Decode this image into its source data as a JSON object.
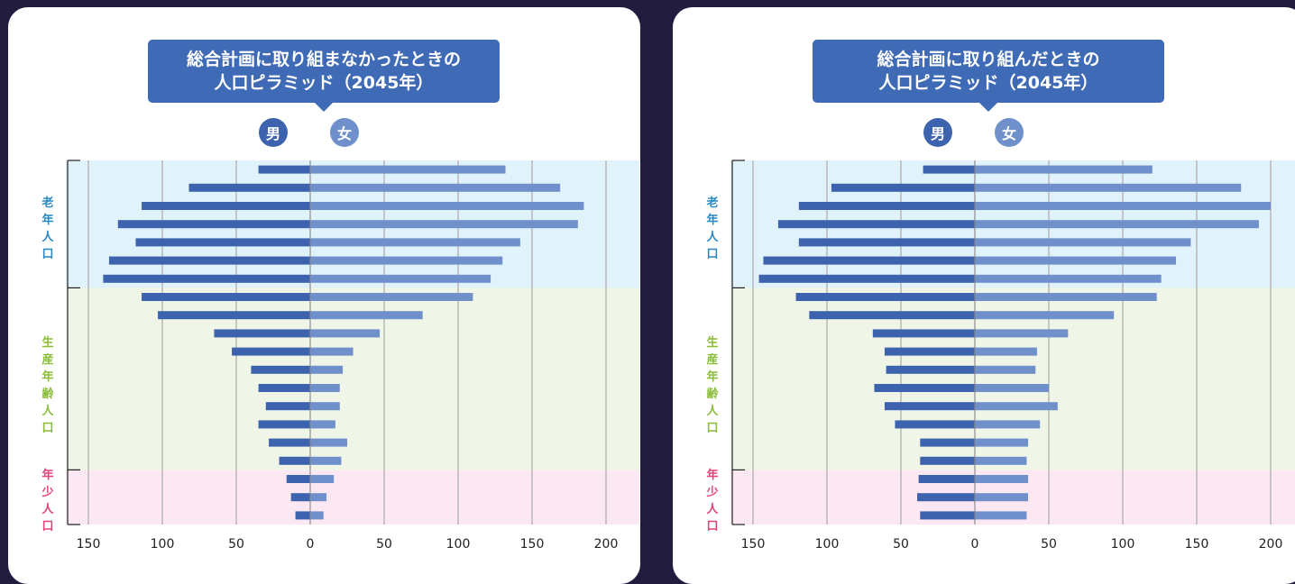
{
  "colors": {
    "page_bg": "#221d3f",
    "title_bg": "#3f6ab6",
    "male_bar": "#3e63ae",
    "female_bar": "#6f90cb",
    "band_old": "#e0f2fa",
    "band_working": "#eff5e7",
    "band_young": "#fbe8f2",
    "grid": "#aaaaaa"
  },
  "labels": {
    "male": "男",
    "female": "女",
    "old": "老年人口",
    "working": "生産年齢人口",
    "young": "年少人口"
  },
  "chart_data": [
    {
      "type": "bar",
      "orientation": "horizontal-pyramid",
      "title": "総合計画に取り組まなかったときの",
      "title_line2": "人口ピラミッド（2045年）",
      "xlim_male": [
        0,
        150
      ],
      "xlim_female": [
        0,
        200
      ],
      "tick_labels": [
        "150",
        "100",
        "50",
        "0",
        "50",
        "100",
        "150",
        "200"
      ],
      "grid": true,
      "series": [
        {
          "name": "男",
          "values": [
            35,
            82,
            114,
            130,
            118,
            136,
            140,
            114,
            103,
            65,
            53,
            40,
            35,
            30,
            35,
            28,
            21,
            16,
            13,
            10
          ]
        },
        {
          "name": "女",
          "values": [
            132,
            169,
            185,
            181,
            142,
            130,
            122,
            110,
            76,
            47,
            29,
            22,
            20,
            20,
            17,
            25,
            21,
            16,
            11,
            9
          ]
        }
      ]
    },
    {
      "type": "bar",
      "orientation": "horizontal-pyramid",
      "title": "総合計画に取り組んだときの",
      "title_line2": "人口ピラミッド（2045年）",
      "xlim_male": [
        0,
        150
      ],
      "xlim_female": [
        0,
        200
      ],
      "tick_labels": [
        "150",
        "100",
        "50",
        "0",
        "50",
        "100",
        "150",
        "200"
      ],
      "grid": true,
      "series": [
        {
          "name": "男",
          "values": [
            35,
            97,
            119,
            133,
            119,
            143,
            146,
            121,
            112,
            69,
            61,
            60,
            68,
            61,
            54,
            37,
            37,
            38,
            39,
            37
          ]
        },
        {
          "name": "女",
          "values": [
            120,
            180,
            200,
            192,
            146,
            136,
            126,
            123,
            94,
            63,
            42,
            41,
            50,
            56,
            44,
            36,
            35,
            36,
            36,
            35
          ]
        }
      ]
    }
  ]
}
